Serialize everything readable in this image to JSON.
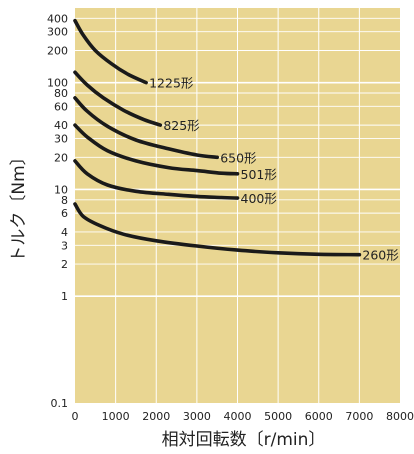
{
  "chart_data": {
    "type": "line",
    "title": "",
    "xlabel": "相対回転数〔r/min〕",
    "ylabel": "トルク〔Nm〕",
    "xlim": [
      0,
      8000
    ],
    "ylim": [
      0.1,
      500
    ],
    "y_scale": "log",
    "grid": true,
    "legend": "none",
    "colors": {
      "plot_background": "#e9d692",
      "grid": "#ffffff",
      "line": "#1a1a1a"
    },
    "x_ticks": [
      0,
      1000,
      2000,
      3000,
      4000,
      5000,
      6000,
      7000,
      8000
    ],
    "y_ticks": [
      0.1,
      1,
      2,
      3,
      4,
      6,
      8,
      10,
      20,
      30,
      40,
      60,
      80,
      100,
      200,
      300,
      400
    ],
    "series": [
      {
        "name": "1225形",
        "x": [
          0,
          200,
          500,
          900,
          1300,
          1750
        ],
        "y": [
          380,
          280,
          200,
          150,
          120,
          100
        ]
      },
      {
        "name": "825形",
        "x": [
          0,
          300,
          700,
          1200,
          1700,
          2100
        ],
        "y": [
          125,
          95,
          72,
          55,
          45,
          40
        ]
      },
      {
        "name": "650形",
        "x": [
          0,
          300,
          800,
          1500,
          2300,
          3000,
          3500
        ],
        "y": [
          72,
          54,
          39,
          29,
          24,
          21,
          20
        ]
      },
      {
        "name": "501形",
        "x": [
          0,
          300,
          800,
          1500,
          2300,
          3000,
          3600,
          4000
        ],
        "y": [
          40,
          31,
          23,
          18.5,
          16,
          15,
          14.2,
          14
        ]
      },
      {
        "name": "400形",
        "x": [
          0,
          300,
          800,
          1500,
          2300,
          3000,
          3600,
          4000
        ],
        "y": [
          18.5,
          14,
          11,
          9.6,
          9,
          8.6,
          8.4,
          8.3
        ]
      },
      {
        "name": "260形",
        "x": [
          0,
          200,
          600,
          1200,
          2000,
          3000,
          4000,
          5000,
          6000,
          7000
        ],
        "y": [
          7.3,
          5.6,
          4.6,
          3.8,
          3.3,
          2.95,
          2.7,
          2.55,
          2.47,
          2.45
        ]
      }
    ]
  }
}
